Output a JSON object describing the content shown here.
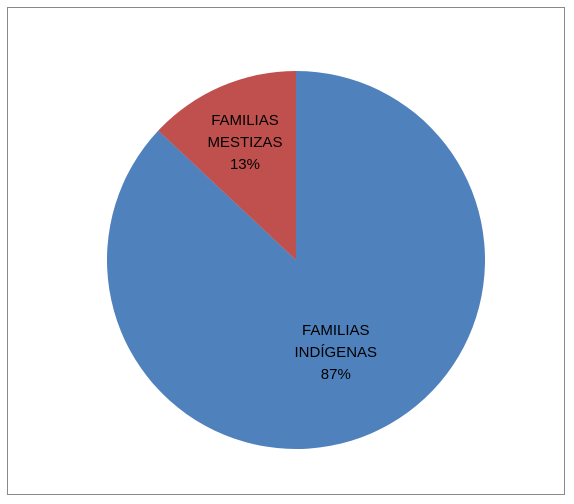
{
  "chart_data": {
    "type": "pie",
    "title": "",
    "slices": [
      {
        "label": "FAMILIAS INDÍGENAS",
        "label_lines": [
          "FAMILIAS",
          "INDÍGENAS"
        ],
        "value": 87,
        "value_label": "87%",
        "color": "#4F81BD"
      },
      {
        "label": "FAMILIAS MESTIZAS",
        "label_lines": [
          "FAMILIAS",
          "MESTIZAS"
        ],
        "value": 13,
        "value_label": "13%",
        "color": "#C0504D"
      }
    ],
    "start": "12 o'clock",
    "direction": "clockwise",
    "legend": "none",
    "data_labels": "inside"
  }
}
